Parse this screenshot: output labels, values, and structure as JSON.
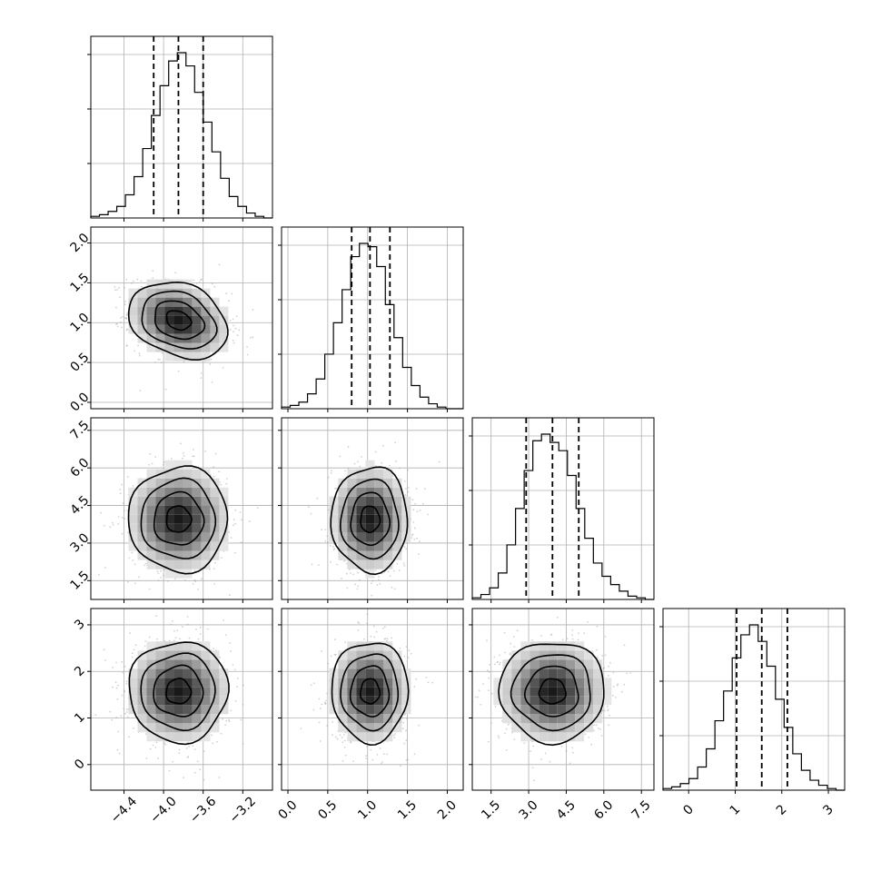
{
  "chart_data": {
    "type": "corner",
    "params": [
      {
        "ticks": [
          "−4.4",
          "−4.0",
          "−3.6",
          "−3.2"
        ],
        "tick_values": [
          -4.4,
          -4.0,
          -3.6,
          -3.2
        ],
        "range": [
          -4.735,
          -2.9
        ],
        "quantiles": [
          -4.1,
          -3.85,
          -3.6
        ],
        "hist_center": -3.85,
        "hist_sigma": 0.25
      },
      {
        "ticks": [
          "0.0",
          "0.5",
          "1.0",
          "1.5",
          "2.0"
        ],
        "tick_values": [
          0.0,
          0.5,
          1.0,
          1.5,
          2.0
        ],
        "range": [
          -0.08,
          2.2
        ],
        "quantiles": [
          0.8,
          1.03,
          1.28
        ],
        "hist_center": 1.03,
        "hist_sigma": 0.24
      },
      {
        "ticks": [
          "1.5",
          "3.0",
          "4.5",
          "6.0",
          "7.5"
        ],
        "tick_values": [
          1.5,
          3.0,
          4.5,
          6.0,
          7.5
        ],
        "range": [
          0.75,
          8.0
        ],
        "quantiles": [
          2.9,
          3.95,
          5.0
        ],
        "hist_center": 3.95,
        "hist_sigma": 1.05
      },
      {
        "ticks": [
          "0",
          "1",
          "2",
          "3"
        ],
        "tick_values": [
          0,
          1,
          2,
          3
        ],
        "range": [
          -0.55,
          3.35
        ],
        "quantiles": [
          1.03,
          1.57,
          2.12
        ],
        "hist_center": 1.57,
        "hist_sigma": 0.54
      }
    ],
    "histograms": [
      [
        1,
        2,
        4,
        7,
        14,
        25,
        42,
        62,
        80,
        95,
        100,
        92,
        76,
        58,
        40,
        24,
        13,
        7,
        3,
        1,
        0
      ],
      [
        1,
        2,
        4,
        9,
        18,
        33,
        52,
        72,
        92,
        100,
        98,
        86,
        63,
        43,
        25,
        14,
        7,
        3,
        1,
        0,
        0
      ],
      [
        1,
        3,
        7,
        16,
        33,
        55,
        78,
        96,
        100,
        95,
        90,
        75,
        55,
        37,
        22,
        14,
        9,
        5,
        2,
        1,
        0
      ],
      [
        1,
        2,
        4,
        7,
        14,
        25,
        42,
        60,
        80,
        94,
        100,
        90,
        75,
        55,
        38,
        22,
        12,
        6,
        3,
        1,
        0
      ]
    ],
    "correlations": {
      "1-0": -0.25,
      "2-0": 0.0,
      "2-1": 0.0,
      "3-0": 0.0,
      "3-1": 0.0,
      "3-2": 0.0
    },
    "contour_levels_sigma": [
      0.5,
      1.0,
      1.5,
      2.0
    ],
    "grid": true
  }
}
